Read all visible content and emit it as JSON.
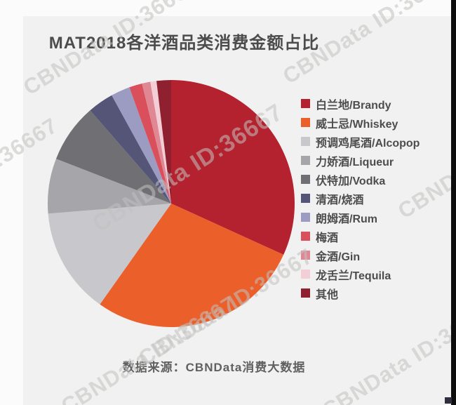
{
  "title": "MAT2018各洋酒品类消费金额占比",
  "source_note": "数据来源：CBNData消费大数据",
  "watermark": {
    "text": "CBNData ID:36667"
  },
  "theme": {
    "canvas_bg": "#fbfbfb",
    "panel_bg": "#f2f1f1",
    "title_color": "#4c4c4c",
    "legend_text_color": "#4d4d4d",
    "source_color": "#606060",
    "watermark_color": "#c2c2c0",
    "right_edge_color": "#0d0d0d"
  },
  "chart_data": {
    "type": "pie",
    "title": "MAT2018各洋酒品类消费金额占比",
    "legend_position": "right",
    "start_angle_deg": 0,
    "direction": "clockwise",
    "unit": "percent_of_total_estimated",
    "categories": [
      "白兰地/Brandy",
      "威士忌/Whiskey",
      "预调鸡尾酒/Alcopop",
      "力娇酒/Liqueur",
      "伏特加/Vodka",
      "清酒/烧酒",
      "朗姆酒/Rum",
      "梅酒",
      "金酒/Gin",
      "龙舌兰/Tequila",
      "其他"
    ],
    "ids": [
      "brandy",
      "whiskey",
      "alcopop",
      "liqueur",
      "vodka",
      "sake-shochu",
      "rum",
      "plum-wine",
      "gin",
      "tequila",
      "others"
    ],
    "values": [
      31.8,
      28.0,
      13.9,
      7.2,
      7.7,
      3.4,
      2.5,
      1.7,
      1.1,
      0.8,
      1.9
    ],
    "colors": [
      "#b5222f",
      "#eb5f2b",
      "#c8c8cc",
      "#a5a5aa",
      "#6f6f74",
      "#555578",
      "#9c9cc2",
      "#d94f5c",
      "#df8894",
      "#f3ced6",
      "#8f2030"
    ]
  }
}
